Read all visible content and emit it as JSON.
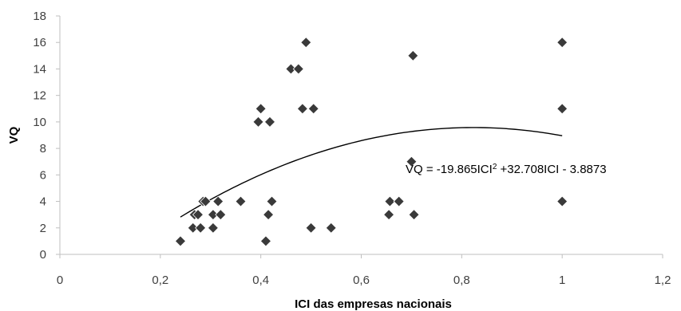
{
  "chart_data": {
    "type": "scatter",
    "title": "",
    "xlabel": "ICI das empresas nacionais",
    "ylabel": "VQ",
    "xlim": [
      0,
      1.2
    ],
    "ylim": [
      0,
      18
    ],
    "x_ticks": [
      {
        "value": 0,
        "label": "0"
      },
      {
        "value": 0.2,
        "label": "0,2"
      },
      {
        "value": 0.4,
        "label": "0,4"
      },
      {
        "value": 0.6,
        "label": "0,6"
      },
      {
        "value": 0.8,
        "label": "0,8"
      },
      {
        "value": 1,
        "label": "1"
      },
      {
        "value": 1.2,
        "label": "1,2"
      }
    ],
    "y_ticks": [
      {
        "value": 0,
        "label": "0"
      },
      {
        "value": 2,
        "label": "2"
      },
      {
        "value": 4,
        "label": "4"
      },
      {
        "value": 6,
        "label": "6"
      },
      {
        "value": 8,
        "label": "8"
      },
      {
        "value": 10,
        "label": "10"
      },
      {
        "value": 12,
        "label": "12"
      },
      {
        "value": 14,
        "label": "14"
      },
      {
        "value": 16,
        "label": "16"
      },
      {
        "value": 18,
        "label": "18"
      }
    ],
    "grid": false,
    "marker": "diamond",
    "marker_color": "#3a3a3a",
    "trendline_color": "#000000",
    "axis_color": "#bfbfbf",
    "points": [
      {
        "x": 0.24,
        "y": 1
      },
      {
        "x": 0.265,
        "y": 2
      },
      {
        "x": 0.268,
        "y": 3
      },
      {
        "x": 0.275,
        "y": 3
      },
      {
        "x": 0.28,
        "y": 2
      },
      {
        "x": 0.285,
        "y": 4
      },
      {
        "x": 0.29,
        "y": 4
      },
      {
        "x": 0.305,
        "y": 3
      },
      {
        "x": 0.305,
        "y": 2
      },
      {
        "x": 0.315,
        "y": 4
      },
      {
        "x": 0.32,
        "y": 3
      },
      {
        "x": 0.36,
        "y": 4
      },
      {
        "x": 0.395,
        "y": 10
      },
      {
        "x": 0.4,
        "y": 11
      },
      {
        "x": 0.41,
        "y": 1
      },
      {
        "x": 0.415,
        "y": 3
      },
      {
        "x": 0.418,
        "y": 10
      },
      {
        "x": 0.422,
        "y": 4
      },
      {
        "x": 0.46,
        "y": 14
      },
      {
        "x": 0.475,
        "y": 14
      },
      {
        "x": 0.483,
        "y": 11
      },
      {
        "x": 0.49,
        "y": 16
      },
      {
        "x": 0.5,
        "y": 2
      },
      {
        "x": 0.505,
        "y": 11
      },
      {
        "x": 0.54,
        "y": 2
      },
      {
        "x": 0.655,
        "y": 3
      },
      {
        "x": 0.657,
        "y": 4
      },
      {
        "x": 0.675,
        "y": 4
      },
      {
        "x": 0.7,
        "y": 7
      },
      {
        "x": 0.703,
        "y": 15
      },
      {
        "x": 0.705,
        "y": 3
      },
      {
        "x": 1,
        "y": 16
      },
      {
        "x": 1,
        "y": 11
      },
      {
        "x": 1,
        "y": 4
      }
    ],
    "trendline": {
      "type": "polynomial",
      "coefficients": {
        "a": -19.865,
        "b": 32.708,
        "c": -3.8873
      },
      "x_range": [
        0.24,
        1.0
      ],
      "equation_lead": "VQ = -19.865ICI",
      "equation_exponent": "2",
      "equation_tail": " +32.708ICI - 3.8873"
    }
  }
}
